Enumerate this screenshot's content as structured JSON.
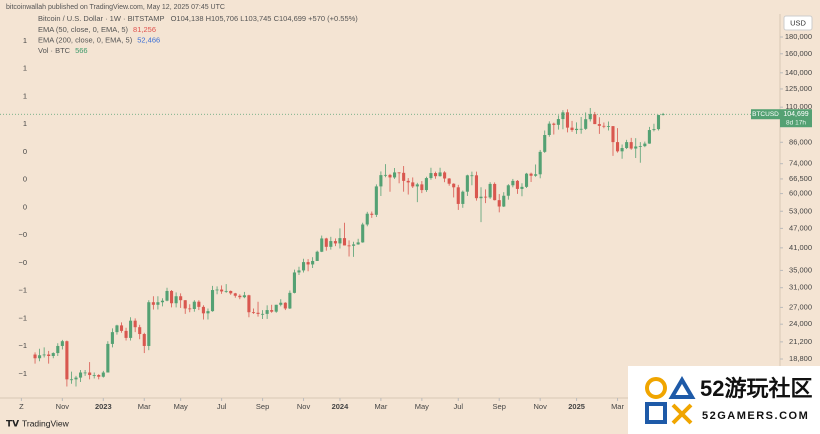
{
  "chart_data": {
    "type": "candlestick",
    "publisher_line": "bitcoinwallah published on TradingView.com, May 12, 2025 07:45 UTC",
    "title": "Bitcoin / U.S. Dollar · 1W · BITSTAMP",
    "ohlc_legend": "O104,138 H105,706 L103,745 C104,699 +570 (+0.55%)",
    "indicators": [
      {
        "name": "EMA (50, close, 0, EMA, 5)",
        "value": "81,256",
        "color": "#e0534f"
      },
      {
        "name": "EMA (200, close, 0, EMA, 5)",
        "value": "52,466",
        "color": "#3b6fd6"
      },
      {
        "name": "Vol · BTC",
        "value": "566",
        "color": "#3d9a6a"
      }
    ],
    "currency_button": "USD",
    "footer_logo": "TradingView",
    "watermark": {
      "title": "52游玩社区",
      "subtitle": "52GAMERS.COM"
    },
    "up_color": "#54a173",
    "down_color": "#d9574f",
    "log_scale": true,
    "grid": false,
    "left_axis_labels": [
      "1",
      "1",
      "1",
      "1",
      "0",
      "0",
      "0",
      "−0",
      "−0",
      "−1",
      "−1",
      "−1",
      "−1"
    ],
    "last_price": {
      "symbol": "BTCUSD",
      "value": 104699,
      "label": "104,699",
      "countdown": "8d 17h"
    },
    "xlim": [
      -7.7,
      163.7
    ],
    "xticks": [
      {
        "value": -3,
        "label": "Z"
      },
      {
        "value": 6,
        "label": "Nov"
      },
      {
        "value": 15,
        "label": "2023"
      },
      {
        "value": 24,
        "label": "Mar"
      },
      {
        "value": 32,
        "label": "May"
      },
      {
        "value": 41,
        "label": "Jul"
      },
      {
        "value": 50,
        "label": "Sep"
      },
      {
        "value": 59,
        "label": "Nov"
      },
      {
        "value": 67,
        "label": "2024"
      },
      {
        "value": 76,
        "label": "Mar"
      },
      {
        "value": 85,
        "label": "May"
      },
      {
        "value": 93,
        "label": "Jul"
      },
      {
        "value": 102,
        "label": "Sep"
      },
      {
        "value": 111,
        "label": "Nov"
      },
      {
        "value": 119,
        "label": "2025"
      },
      {
        "value": 128,
        "label": "Mar"
      }
    ],
    "ylim": [
      14300,
      211500
    ],
    "yticks": [
      {
        "value": 18800,
        "label": "18,800"
      },
      {
        "value": 21200,
        "label": "21,200"
      },
      {
        "value": 24000,
        "label": "24,000"
      },
      {
        "value": 27000,
        "label": "27,000"
      },
      {
        "value": 31000,
        "label": "31,000"
      },
      {
        "value": 35000,
        "label": "35,000"
      },
      {
        "value": 41000,
        "label": "41,000"
      },
      {
        "value": 47000,
        "label": "47,000"
      },
      {
        "value": 53000,
        "label": "53,000"
      },
      {
        "value": 60000,
        "label": "60,000"
      },
      {
        "value": 66500,
        "label": "66,500"
      },
      {
        "value": 74000,
        "label": "74,000"
      },
      {
        "value": 86000,
        "label": "86,000"
      },
      {
        "value": 110000,
        "label": "110,000"
      },
      {
        "value": 125000,
        "label": "125,000"
      },
      {
        "value": 140000,
        "label": "140,000"
      },
      {
        "value": 160000,
        "label": "160,000"
      },
      {
        "value": 180000,
        "label": "180,000"
      }
    ],
    "open": [
      19400,
      18900,
      19300,
      19400,
      19200,
      19600,
      20600,
      21300,
      16300,
      16300,
      16500,
      17100,
      17100,
      16800,
      16800,
      16600,
      17100,
      20900,
      22700,
      23800,
      22900,
      21800,
      24600,
      23500,
      22400,
      20600,
      28000,
      27500,
      28000,
      28300,
      30300,
      27800,
      29200,
      28400,
      26800,
      26700,
      28100,
      27100,
      25900,
      26300,
      30500,
      30600,
      30200,
      30300,
      29800,
      29300,
      29000,
      29400,
      26100,
      26000,
      25800,
      25800,
      26500,
      26200,
      27500,
      27900,
      26800,
      29900,
      34500,
      35000,
      37100,
      36500,
      37400,
      39900,
      43800,
      41300,
      43000,
      42300,
      43900,
      41700,
      41600,
      42000,
      42600,
      48300,
      52100,
      51700,
      63100,
      68300,
      68400,
      67200,
      69600,
      69400,
      65600,
      64900,
      63100,
      64000,
      61500,
      66900,
      69300,
      67800,
      69600,
      66700,
      64300,
      62700,
      55800,
      60800,
      68200,
      68200,
      58100,
      58700,
      58400,
      64200,
      57300,
      54800,
      59100,
      63600,
      65600,
      62000,
      62900,
      69000,
      68000,
      68700,
      80400,
      90500,
      98000,
      97200,
      101200,
      106100,
      95300,
      93700,
      94500,
      94500,
      101100,
      104700,
      97700,
      96500,
      96100,
      96300,
      86100,
      80700,
      82600,
      86100,
      82300,
      83500,
      83700,
      85200,
      93700,
      94300,
      104138
    ],
    "high": [
      19700,
      20200,
      20400,
      19900,
      19700,
      21000,
      21500,
      21400,
      17200,
      16700,
      17400,
      17400,
      18400,
      17100,
      16900,
      17300,
      21300,
      23300,
      23900,
      24300,
      23400,
      25200,
      25000,
      23900,
      22600,
      28400,
      29200,
      29200,
      28800,
      31000,
      30500,
      30000,
      29800,
      28400,
      27600,
      28400,
      28400,
      27400,
      26800,
      31400,
      31300,
      31500,
      31800,
      30400,
      29900,
      29600,
      30100,
      29500,
      26800,
      28100,
      26500,
      27400,
      27500,
      27500,
      28600,
      28000,
      30400,
      35200,
      35900,
      38000,
      37900,
      38400,
      40200,
      44700,
      44000,
      44300,
      43800,
      47000,
      48900,
      43200,
      42800,
      43700,
      48900,
      52800,
      52900,
      64000,
      70100,
      73800,
      68900,
      71800,
      69700,
      72800,
      66900,
      67200,
      64700,
      65500,
      67500,
      71900,
      70000,
      71900,
      70200,
      66900,
      64500,
      63800,
      61300,
      68500,
      70000,
      70000,
      62700,
      61800,
      65000,
      64900,
      59800,
      60600,
      64100,
      66500,
      66000,
      64500,
      69400,
      69500,
      73600,
      81500,
      93400,
      99600,
      98700,
      103900,
      107800,
      108300,
      99900,
      98900,
      102700,
      106000,
      109400,
      106400,
      102500,
      98800,
      99500,
      96400,
      95000,
      84700,
      87500,
      88700,
      88500,
      86100,
      86400,
      95800,
      97900,
      104300,
      105706
    ],
    "low": [
      18200,
      18500,
      19000,
      18200,
      18900,
      19200,
      20100,
      15500,
      15800,
      15500,
      16000,
      16700,
      16300,
      16400,
      16300,
      16500,
      17100,
      20400,
      22300,
      22600,
      21400,
      21400,
      22700,
      21600,
      19600,
      20000,
      26600,
      26600,
      27200,
      28200,
      27000,
      27000,
      26900,
      25800,
      26100,
      26200,
      26500,
      24800,
      24800,
      26200,
      29600,
      29700,
      29900,
      29500,
      28900,
      28600,
      28800,
      25200,
      25800,
      25300,
      24900,
      24900,
      26000,
      26000,
      27200,
      26500,
      26700,
      29800,
      33900,
      34500,
      34800,
      35600,
      37400,
      39800,
      40200,
      40500,
      41500,
      40800,
      41700,
      38600,
      38500,
      41900,
      42500,
      47700,
      50600,
      50900,
      59000,
      67300,
      60800,
      66500,
      64500,
      60800,
      59600,
      62400,
      56500,
      60200,
      60700,
      66100,
      66600,
      67600,
      65000,
      63400,
      58400,
      53500,
      54300,
      59000,
      63600,
      57100,
      49100,
      56100,
      57800,
      57200,
      52600,
      54600,
      57500,
      62700,
      59900,
      58900,
      62400,
      65100,
      67500,
      66800,
      79800,
      89400,
      90800,
      94000,
      94200,
      92200,
      92500,
      91200,
      91300,
      93800,
      99500,
      97700,
      91200,
      94900,
      93400,
      78200,
      80000,
      76600,
      82000,
      81600,
      77000,
      74500,
      83100,
      85100,
      92800,
      93400,
      103745
    ],
    "close": [
      18900,
      19300,
      19400,
      19200,
      19600,
      20600,
      21300,
      16300,
      16300,
      16500,
      17100,
      17100,
      16800,
      16800,
      16600,
      17100,
      20900,
      22700,
      23800,
      22900,
      21800,
      24600,
      23500,
      22400,
      20600,
      28000,
      27500,
      28000,
      28300,
      30300,
      27800,
      29200,
      28400,
      26800,
      26700,
      28100,
      27100,
      25900,
      26300,
      30500,
      30600,
      30200,
      30300,
      29800,
      29300,
      29000,
      29400,
      26100,
      26000,
      25800,
      25800,
      26500,
      26200,
      27500,
      27900,
      26800,
      29900,
      34500,
      35000,
      37100,
      36500,
      37400,
      39900,
      43800,
      41300,
      43000,
      42300,
      43900,
      41700,
      41600,
      42000,
      42600,
      48300,
      52100,
      51700,
      63100,
      68300,
      68400,
      67200,
      69600,
      69400,
      65600,
      64900,
      63100,
      64000,
      61500,
      66900,
      69300,
      67800,
      69600,
      66700,
      64300,
      62700,
      55800,
      60800,
      68200,
      68200,
      58100,
      58700,
      58400,
      64200,
      57300,
      54800,
      59100,
      63600,
      65600,
      62000,
      62900,
      69000,
      68000,
      68700,
      80400,
      90500,
      98000,
      97200,
      101200,
      106100,
      95300,
      93700,
      94500,
      94500,
      101100,
      104700,
      97700,
      96500,
      96100,
      96300,
      86100,
      80700,
      82600,
      86100,
      82300,
      83500,
      83700,
      85200,
      93700,
      94300,
      104100,
      104699
    ]
  }
}
